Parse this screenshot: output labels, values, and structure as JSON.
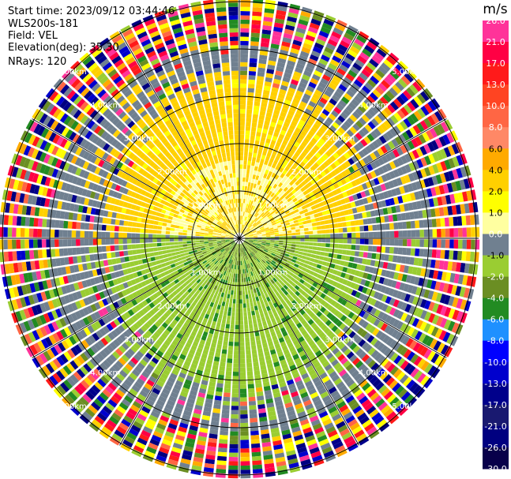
{
  "header": {
    "start_time": "Start time: 2023/09/12 03:44:46",
    "instrument": "WLS200s-181",
    "field": "Field: VEL",
    "elevation": "Elevation(deg): 35.30",
    "nrays": "NRays: 120"
  },
  "chart_data": {
    "type": "heatmap",
    "projection": "polar-ppi",
    "field": "VEL",
    "units": "m/s",
    "nrays": 120,
    "elevation_deg": 35.3,
    "range_rings_km": [
      1,
      2,
      3,
      4,
      5
    ],
    "range_ring_labels": [
      "1.00km",
      "2.00km",
      "3.00km",
      "4.00km",
      "5.00km"
    ],
    "radial_spokes_deg": [
      0,
      30,
      60,
      90,
      120,
      150,
      180,
      210,
      240,
      270,
      300,
      330
    ],
    "colorbar": {
      "label": "m/s",
      "ticks": [
        "26.0",
        "21.0",
        "17.0",
        "13.0",
        "10.0",
        "8.0",
        "6.0",
        "4.0",
        "2.0",
        "1.0",
        "0.0",
        "-1.0",
        "-2.0",
        "-4.0",
        "-6.0",
        "-8.0",
        "-10.0",
        "-13.0",
        "-17.0",
        "-21.0",
        "-26.0",
        "-30.0"
      ],
      "colors": [
        "#ff3399",
        "#ff0044",
        "#ff1a1a",
        "#ff4422",
        "#ff6644",
        "#ff8866",
        "#ffaa00",
        "#ffd000",
        "#ffff00",
        "#ffffa0",
        "#708090",
        "#9acd32",
        "#6b8e23",
        "#228b22",
        "#1e90ff",
        "#0000ff",
        "#0000cd",
        "#00008b",
        "#191970",
        "#000080",
        "#08004a"
      ]
    },
    "velocity_pattern": {
      "near_range_north": "2.0 to 4.0 (yellow)",
      "near_range_south": "-1.0 to -2.0 (green)",
      "beyond_4km": "noisy / random"
    }
  }
}
